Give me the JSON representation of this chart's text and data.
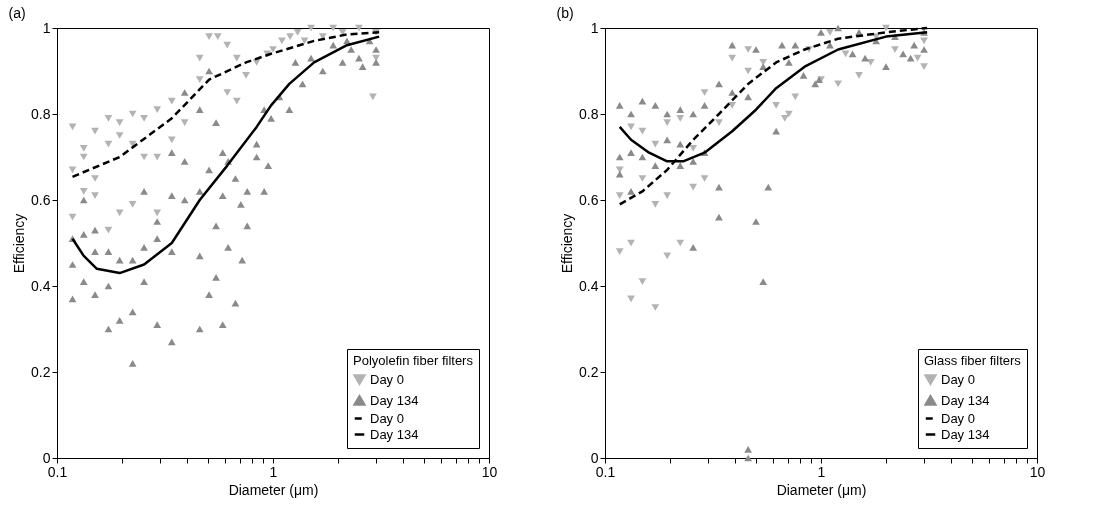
{
  "chart_data": [
    {
      "type": "scatter",
      "annotations": [
        "(a)"
      ],
      "xlabel": "Diameter (μm)",
      "ylabel": "Efficiency",
      "legend_title": "Polyolefin fiber filters",
      "legend": "bottom right",
      "log": "x",
      "grid": false,
      "xlim": [
        0.1,
        10
      ],
      "ylim": [
        0,
        1
      ],
      "xticks": [
        0.1,
        {
          "value": 0.2,
          "label": null
        },
        {
          "value": 0.3,
          "label": null
        },
        {
          "value": 0.4,
          "label": null
        },
        {
          "value": 0.5,
          "label": null
        },
        {
          "value": 0.6,
          "label": null
        },
        {
          "value": 0.7,
          "label": null
        },
        {
          "value": 0.8,
          "label": null
        },
        {
          "value": 0.9,
          "label": null
        },
        1,
        {
          "value": 2,
          "label": null
        },
        {
          "value": 3,
          "label": null
        },
        {
          "value": 4,
          "label": null
        },
        {
          "value": 5,
          "label": null
        },
        {
          "value": 6,
          "label": null
        },
        {
          "value": 7,
          "label": null
        },
        {
          "value": 8,
          "label": null
        },
        {
          "value": 9,
          "label": null
        },
        10
      ],
      "yticks": [
        0,
        0.2,
        0.4,
        0.6,
        0.8,
        1
      ],
      "series": [
        {
          "name": "Day 0",
          "type": "scatter",
          "marker": "triangle-down",
          "color": "#b3b3b3",
          "x": [
            0.118,
            0.118,
            0.118,
            0.133,
            0.133,
            0.133,
            0.15,
            0.15,
            0.15,
            0.173,
            0.173,
            0.173,
            0.195,
            0.195,
            0.195,
            0.224,
            0.224,
            0.224,
            0.253,
            0.253,
            0.291,
            0.291,
            0.291,
            0.34,
            0.34,
            0.39,
            0.458,
            0.458,
            0.506,
            0.555,
            0.614,
            0.614,
            0.68,
            0.68,
            0.75,
            0.84,
            0.94,
            1.0,
            1.1,
            1.2,
            1.3,
            1.4,
            1.5,
            1.7,
            1.9,
            2.1,
            2.5,
            3.0,
            3.0,
            2.9
          ],
          "values": [
            0.77,
            0.67,
            0.56,
            0.72,
            0.7,
            0.62,
            0.76,
            0.65,
            0.61,
            0.79,
            0.73,
            0.53,
            0.78,
            0.75,
            0.57,
            0.8,
            0.73,
            0.59,
            0.79,
            0.7,
            0.81,
            0.7,
            0.57,
            0.83,
            0.74,
            0.78,
            0.93,
            0.88,
            0.98,
            0.98,
            0.96,
            0.85,
            0.93,
            0.83,
            0.89,
            0.92,
            0.94,
            0.95,
            0.97,
            0.98,
            0.99,
            0.97,
            1.0,
            0.98,
            1.0,
            0.99,
            1.0,
            0.99,
            0.93,
            0.84
          ]
        },
        {
          "name": "Day 134",
          "type": "scatter",
          "marker": "triangle",
          "color": "#8a8a8a",
          "x": [
            0.118,
            0.118,
            0.118,
            0.133,
            0.133,
            0.133,
            0.15,
            0.15,
            0.15,
            0.173,
            0.173,
            0.173,
            0.195,
            0.195,
            0.224,
            0.224,
            0.224,
            0.253,
            0.253,
            0.253,
            0.291,
            0.291,
            0.291,
            0.34,
            0.34,
            0.34,
            0.34,
            0.39,
            0.39,
            0.39,
            0.458,
            0.458,
            0.458,
            0.458,
            0.506,
            0.506,
            0.506,
            0.545,
            0.545,
            0.545,
            0.585,
            0.585,
            0.585,
            0.62,
            0.62,
            0.67,
            0.67,
            0.71,
            0.72,
            0.76,
            0.76,
            0.84,
            0.84,
            0.91,
            0.91,
            0.95,
            0.98,
            1.07,
            1.19,
            1.27,
            1.37,
            1.5,
            1.7,
            1.9,
            2.1,
            2.3,
            2.5,
            2.8,
            3.0,
            2.2,
            2.6,
            3.0
          ],
          "values": [
            0.45,
            0.37,
            0.51,
            0.52,
            0.6,
            0.41,
            0.53,
            0.48,
            0.38,
            0.48,
            0.4,
            0.3,
            0.46,
            0.32,
            0.46,
            0.34,
            0.22,
            0.49,
            0.41,
            0.62,
            0.55,
            0.51,
            0.31,
            0.48,
            0.61,
            0.71,
            0.27,
            0.6,
            0.69,
            0.85,
            0.47,
            0.62,
            0.3,
            0.81,
            0.38,
            0.67,
            0.9,
            0.54,
            0.42,
            0.78,
            0.71,
            0.61,
            0.31,
            0.49,
            0.69,
            0.36,
            0.65,
            0.59,
            0.46,
            0.62,
            0.54,
            0.7,
            0.73,
            0.62,
            0.81,
            0.68,
            0.79,
            0.84,
            0.81,
            0.92,
            0.87,
            0.93,
            0.9,
            0.96,
            0.92,
            0.95,
            0.93,
            0.97,
            0.95,
            0.97,
            0.91,
            0.92
          ]
        },
        {
          "name": "Day 0",
          "type": "line",
          "line_style": "dashed",
          "color": "#000000",
          "x": [
            0.118,
            0.195,
            0.34,
            0.506,
            0.75,
            0.98,
            1.55,
            2.2,
            3.1
          ],
          "values": [
            0.654,
            0.7,
            0.79,
            0.88,
            0.92,
            0.94,
            0.97,
            0.985,
            0.99
          ]
        },
        {
          "name": "Day 134",
          "type": "line",
          "line_style": "solid",
          "color": "#000000",
          "x": [
            0.118,
            0.133,
            0.153,
            0.195,
            0.253,
            0.34,
            0.458,
            0.614,
            0.84,
            0.98,
            1.19,
            1.55,
            2.2,
            3.1
          ],
          "values": [
            0.51,
            0.47,
            0.44,
            0.43,
            0.45,
            0.5,
            0.6,
            0.68,
            0.77,
            0.82,
            0.87,
            0.92,
            0.96,
            0.98
          ]
        }
      ]
    },
    {
      "type": "scatter",
      "annotations": [
        "(b)"
      ],
      "xlabel": "Diameter (μm)",
      "ylabel": "Efficiency",
      "legend_title": "Glass fiber filters",
      "legend": "bottom right",
      "log": "x",
      "grid": false,
      "xlim": [
        0.1,
        10
      ],
      "ylim": [
        0,
        1
      ],
      "xticks": [
        0.1,
        {
          "value": 0.2,
          "label": null
        },
        {
          "value": 0.3,
          "label": null
        },
        {
          "value": 0.4,
          "label": null
        },
        {
          "value": 0.5,
          "label": null
        },
        {
          "value": 0.6,
          "label": null
        },
        {
          "value": 0.7,
          "label": null
        },
        {
          "value": 0.8,
          "label": null
        },
        {
          "value": 0.9,
          "label": null
        },
        1,
        {
          "value": 2,
          "label": null
        },
        {
          "value": 3,
          "label": null
        },
        {
          "value": 4,
          "label": null
        },
        {
          "value": 5,
          "label": null
        },
        {
          "value": 6,
          "label": null
        },
        {
          "value": 7,
          "label": null
        },
        {
          "value": 8,
          "label": null
        },
        {
          "value": 9,
          "label": null
        },
        10
      ],
      "yticks": [
        0,
        0.2,
        0.4,
        0.6,
        0.8,
        1
      ],
      "series": [
        {
          "name": "Day 0",
          "type": "scatter",
          "marker": "triangle-down",
          "color": "#b3b3b3",
          "x": [
            0.117,
            0.117,
            0.132,
            0.132,
            0.117,
            0.132,
            0.149,
            0.149,
            0.149,
            0.171,
            0.171,
            0.171,
            0.194,
            0.194,
            0.194,
            0.223,
            0.223,
            0.256,
            0.256,
            0.289,
            0.289,
            0.337,
            0.388,
            0.388,
            0.46,
            0.46,
            0.54,
            0.62,
            0.68,
            0.71,
            0.76,
            0.88,
            1.0,
            1.1,
            1.3,
            1.5,
            1.7,
            2.0,
            2.2,
            2.8,
            3.0,
            3.0,
            1.2,
            1.8
          ],
          "values": [
            0.61,
            0.48,
            0.5,
            0.37,
            0.67,
            0.77,
            0.41,
            0.76,
            0.65,
            0.59,
            0.35,
            0.73,
            0.61,
            0.47,
            0.78,
            0.5,
            0.79,
            0.63,
            0.72,
            0.65,
            0.85,
            0.78,
            0.93,
            0.82,
            0.95,
            0.9,
            0.92,
            0.82,
            0.79,
            0.8,
            0.84,
            0.95,
            0.88,
            0.99,
            0.94,
            0.89,
            0.92,
            1.0,
            0.95,
            0.93,
            0.97,
            0.91,
            0.87,
            0.98
          ]
        },
        {
          "name": "Day 134",
          "type": "scatter",
          "marker": "triangle",
          "color": "#8a8a8a",
          "x": [
            0.117,
            0.117,
            0.117,
            0.132,
            0.132,
            0.132,
            0.149,
            0.149,
            0.171,
            0.171,
            0.194,
            0.194,
            0.223,
            0.223,
            0.223,
            0.256,
            0.256,
            0.256,
            0.289,
            0.289,
            0.337,
            0.337,
            0.337,
            0.388,
            0.388,
            0.46,
            0.46,
            0.46,
            0.5,
            0.5,
            0.54,
            0.54,
            0.57,
            0.62,
            0.66,
            0.71,
            0.76,
            0.83,
            0.94,
            0.98,
            1.0,
            1.1,
            1.2,
            1.4,
            1.5,
            1.6,
            1.8,
            2.0,
            2.2,
            2.4,
            2.7,
            3.0,
            3.0,
            2.6
          ],
          "values": [
            0.82,
            0.7,
            0.66,
            0.8,
            0.71,
            0.62,
            0.83,
            0.7,
            0.82,
            0.68,
            0.8,
            0.74,
            0.81,
            0.73,
            0.68,
            0.8,
            0.69,
            0.49,
            0.82,
            0.71,
            0.87,
            0.63,
            0.56,
            0.96,
            0.85,
            0.02,
            0.0,
            0.84,
            0.95,
            0.55,
            0.41,
            0.91,
            0.63,
            0.76,
            0.96,
            0.92,
            0.96,
            0.89,
            0.87,
            0.88,
            0.99,
            0.96,
            1.0,
            0.94,
            0.99,
            0.93,
            0.97,
            0.91,
            0.98,
            0.94,
            0.96,
            0.95,
            0.99,
            0.93
          ]
        },
        {
          "name": "Day 0",
          "type": "line",
          "line_style": "dashed",
          "color": "#000000",
          "x": [
            0.117,
            0.149,
            0.194,
            0.256,
            0.337,
            0.46,
            0.62,
            0.84,
            1.2,
            2.0,
            3.1
          ],
          "values": [
            0.59,
            0.62,
            0.67,
            0.74,
            0.8,
            0.87,
            0.92,
            0.95,
            0.975,
            0.99,
            1.0
          ]
        },
        {
          "name": "Day 134",
          "type": "line",
          "line_style": "solid",
          "color": "#000000",
          "x": [
            0.117,
            0.132,
            0.16,
            0.194,
            0.23,
            0.289,
            0.388,
            0.5,
            0.62,
            0.84,
            1.2,
            2.0,
            3.1
          ],
          "values": [
            0.77,
            0.74,
            0.71,
            0.69,
            0.69,
            0.71,
            0.76,
            0.81,
            0.86,
            0.91,
            0.95,
            0.98,
            0.99
          ]
        }
      ]
    }
  ]
}
